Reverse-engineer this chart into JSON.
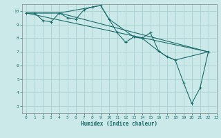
{
  "xlabel": "Humidex (Indice chaleur)",
  "xlim": [
    -0.5,
    23
  ],
  "ylim": [
    2.5,
    10.5
  ],
  "xticks": [
    0,
    1,
    2,
    3,
    4,
    5,
    6,
    7,
    8,
    9,
    10,
    11,
    12,
    13,
    14,
    15,
    16,
    17,
    18,
    19,
    20,
    21,
    22,
    23
  ],
  "yticks": [
    3,
    4,
    5,
    6,
    7,
    8,
    9,
    10
  ],
  "background_color": "#cce9e9",
  "grid_color": "#aed4d4",
  "line_color": "#1a6b6b",
  "series": [
    {
      "x": [
        0,
        1,
        2,
        3,
        4,
        5,
        6,
        7,
        8,
        9,
        10,
        11,
        12,
        13,
        14,
        15,
        16,
        17,
        18,
        19,
        20,
        21,
        22
      ],
      "y": [
        9.85,
        9.85,
        9.3,
        9.2,
        9.85,
        9.5,
        9.4,
        10.1,
        10.3,
        10.4,
        9.4,
        8.4,
        7.7,
        8.1,
        8.0,
        8.4,
        7.05,
        6.65,
        6.4,
        4.75,
        3.2,
        4.35,
        7.0
      ],
      "marker": true
    },
    {
      "x": [
        0,
        22
      ],
      "y": [
        9.85,
        7.0
      ],
      "marker": false
    },
    {
      "x": [
        0,
        4,
        22
      ],
      "y": [
        9.85,
        9.85,
        7.0
      ],
      "marker": false
    },
    {
      "x": [
        0,
        4,
        9,
        10,
        13,
        14,
        16,
        17,
        18,
        22
      ],
      "y": [
        9.85,
        9.85,
        10.4,
        9.4,
        8.1,
        8.0,
        7.05,
        6.65,
        6.4,
        7.0
      ],
      "marker": false
    }
  ]
}
